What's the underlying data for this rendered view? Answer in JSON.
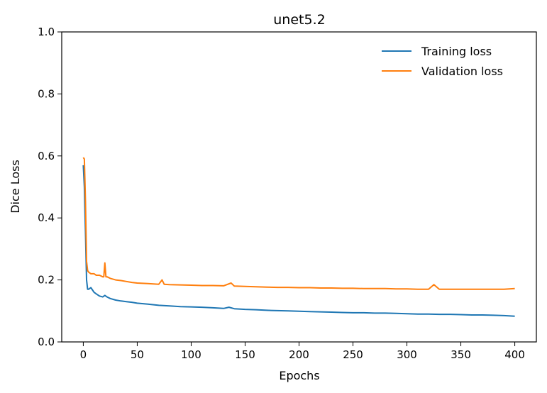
{
  "chart_data": {
    "type": "line",
    "title": "unet5.2",
    "xlabel": "Epochs",
    "ylabel": "Dice Loss",
    "xlim": [
      -20,
      420
    ],
    "ylim": [
      0.0,
      1.0
    ],
    "xticks": [
      0,
      50,
      100,
      150,
      200,
      250,
      300,
      350,
      400
    ],
    "xtick_labels": [
      "0",
      "50",
      "100",
      "150",
      "200",
      "250",
      "300",
      "350",
      "400"
    ],
    "yticks": [
      0.0,
      0.2,
      0.4,
      0.6,
      0.8,
      1.0
    ],
    "ytick_labels": [
      "0.0",
      "0.2",
      "0.4",
      "0.6",
      "0.8",
      "1.0"
    ],
    "grid": false,
    "legend_position": "top-right",
    "series": [
      {
        "name": "Training loss",
        "color": "#1f77b4",
        "x": [
          0,
          1,
          2,
          3,
          4,
          5,
          7,
          10,
          12,
          15,
          18,
          20,
          22,
          25,
          30,
          35,
          40,
          45,
          50,
          60,
          70,
          80,
          90,
          100,
          110,
          120,
          130,
          135,
          140,
          150,
          160,
          170,
          180,
          190,
          200,
          210,
          220,
          230,
          240,
          250,
          260,
          270,
          280,
          290,
          300,
          310,
          320,
          330,
          340,
          350,
          360,
          370,
          380,
          390,
          400
        ],
        "values": [
          0.57,
          0.5,
          0.35,
          0.2,
          0.17,
          0.17,
          0.175,
          0.16,
          0.155,
          0.148,
          0.145,
          0.15,
          0.145,
          0.14,
          0.135,
          0.132,
          0.13,
          0.128,
          0.125,
          0.122,
          0.118,
          0.116,
          0.114,
          0.113,
          0.112,
          0.11,
          0.108,
          0.112,
          0.107,
          0.105,
          0.104,
          0.102,
          0.101,
          0.1,
          0.099,
          0.098,
          0.097,
          0.096,
          0.095,
          0.094,
          0.094,
          0.093,
          0.093,
          0.092,
          0.091,
          0.09,
          0.09,
          0.089,
          0.089,
          0.088,
          0.087,
          0.087,
          0.086,
          0.085,
          0.083
        ]
      },
      {
        "name": "Validation loss",
        "color": "#ff7f0e",
        "x": [
          0,
          1,
          2,
          3,
          4,
          5,
          7,
          10,
          12,
          15,
          18,
          19,
          20,
          21,
          22,
          25,
          30,
          35,
          40,
          45,
          50,
          60,
          70,
          73,
          75,
          80,
          90,
          100,
          110,
          120,
          130,
          137,
          140,
          150,
          160,
          170,
          180,
          190,
          200,
          210,
          220,
          230,
          240,
          250,
          260,
          270,
          280,
          290,
          300,
          310,
          320,
          325,
          330,
          340,
          350,
          360,
          370,
          380,
          390,
          400
        ],
        "values": [
          0.595,
          0.59,
          0.45,
          0.26,
          0.23,
          0.225,
          0.22,
          0.22,
          0.215,
          0.215,
          0.21,
          0.21,
          0.255,
          0.21,
          0.21,
          0.205,
          0.2,
          0.198,
          0.195,
          0.192,
          0.19,
          0.188,
          0.186,
          0.2,
          0.186,
          0.185,
          0.184,
          0.183,
          0.182,
          0.182,
          0.181,
          0.19,
          0.18,
          0.179,
          0.178,
          0.177,
          0.176,
          0.176,
          0.175,
          0.175,
          0.174,
          0.174,
          0.173,
          0.173,
          0.172,
          0.172,
          0.172,
          0.171,
          0.171,
          0.17,
          0.17,
          0.185,
          0.17,
          0.17,
          0.17,
          0.17,
          0.17,
          0.17,
          0.17,
          0.172
        ]
      }
    ]
  }
}
